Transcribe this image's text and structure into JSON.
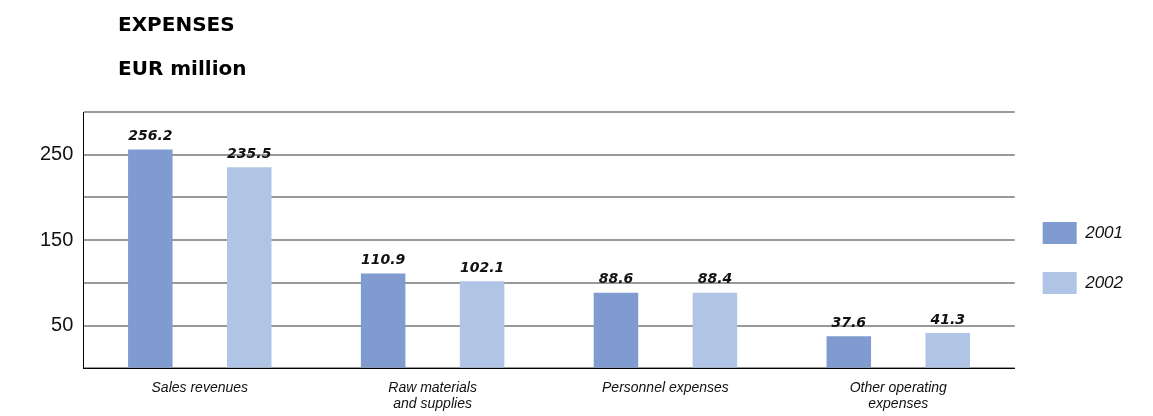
{
  "chart_data": {
    "type": "bar",
    "title": "EXPENSES",
    "ylabel": "EUR million",
    "categories": [
      "Sales revenues",
      "Raw materials\nand supplies",
      "Personnel expenses",
      "Other operating\nexpenses"
    ],
    "series": [
      {
        "name": "2001",
        "color": "#7f9bcf",
        "values": [
          256.2,
          110.9,
          88.6,
          37.6
        ]
      },
      {
        "name": "2002",
        "color": "#b0c4e6",
        "values": [
          235.5,
          102.1,
          88.4,
          41.3
        ]
      }
    ],
    "ylim": [
      0,
      300
    ],
    "yticks": [
      {
        "value": 0,
        "label": null
      },
      50,
      {
        "value": 100,
        "label": null
      },
      150,
      {
        "value": 200,
        "label": null
      },
      250,
      {
        "value": 300,
        "label": null
      }
    ],
    "grid": "y",
    "legend": "right",
    "data_labels": true
  }
}
